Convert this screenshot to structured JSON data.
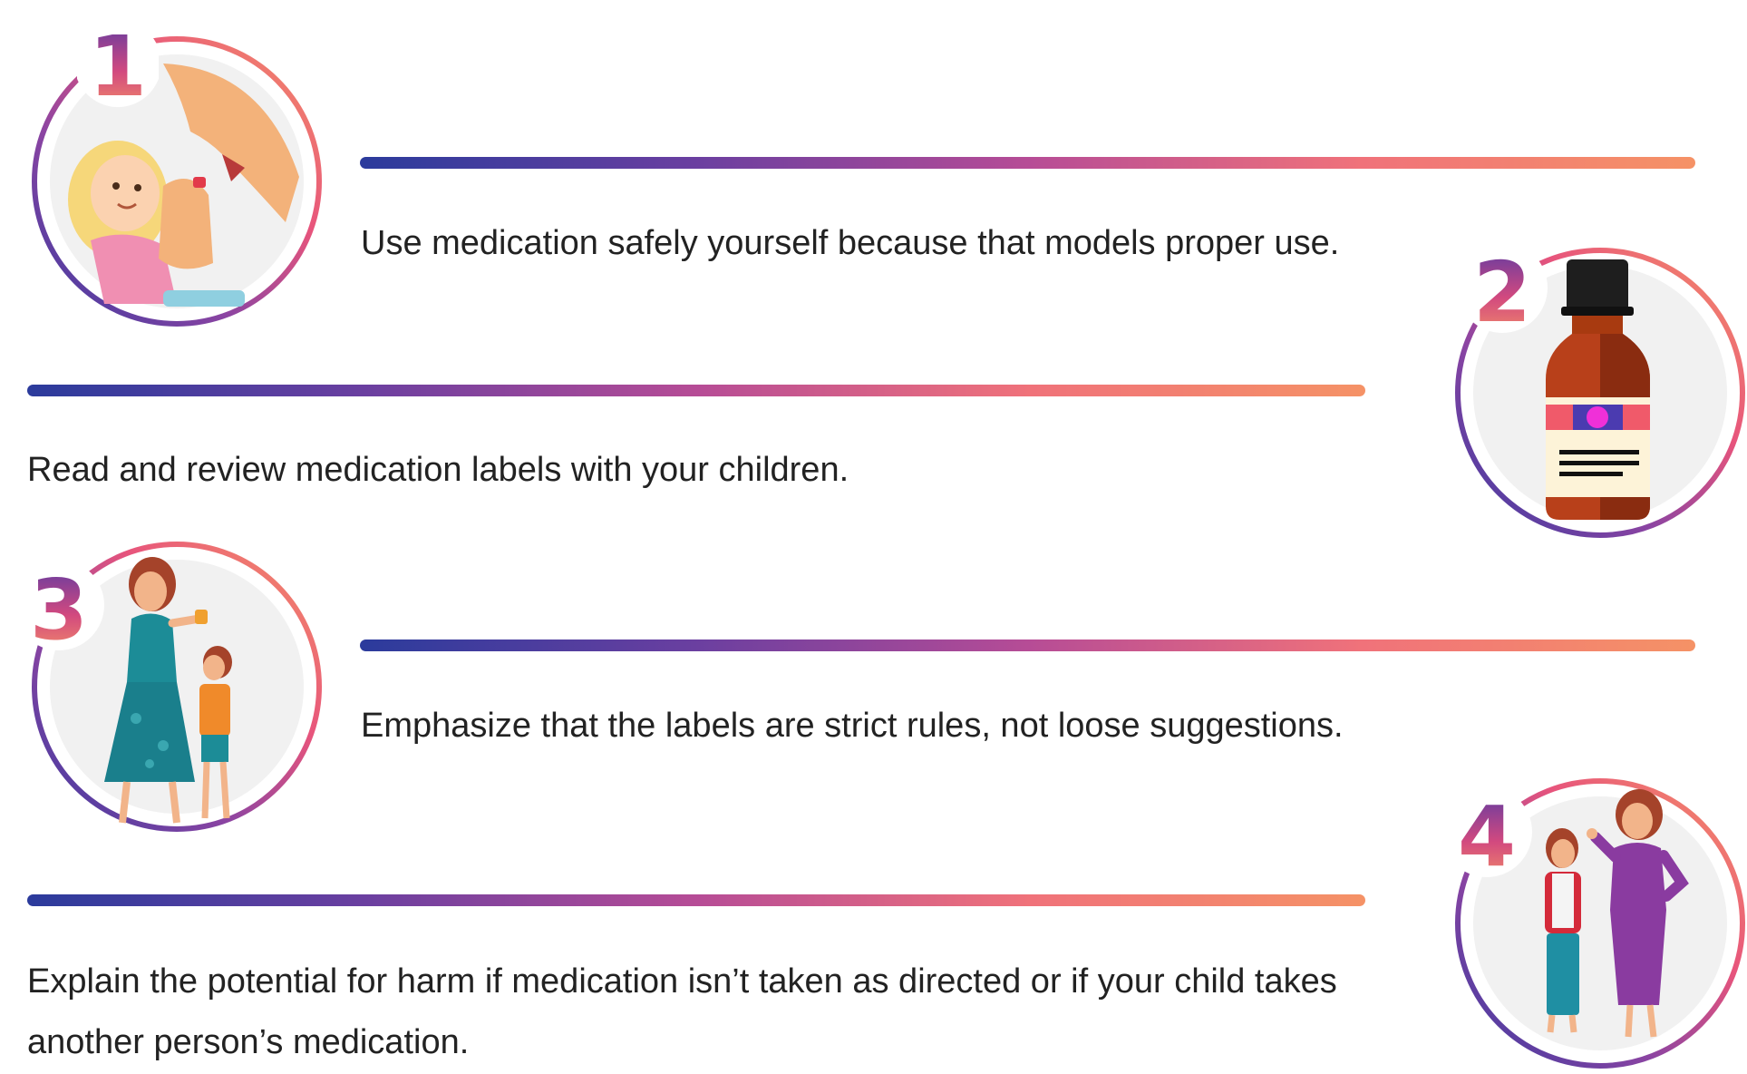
{
  "steps": [
    {
      "number": "1",
      "text": "Use medication safely yourself because that models proper use."
    },
    {
      "number": "2",
      "text": "Read and review medication labels with your children."
    },
    {
      "number": "3",
      "text": "Emphasize that the labels are strict rules, not loose suggestions."
    },
    {
      "number": "4",
      "text": "Explain the potential for harm if medication isn’t taken as directed or if your child takes another person’s medication."
    }
  ],
  "colors": {
    "gradient_start": "#2b3b9c",
    "gradient_mid": "#b64c96",
    "gradient_end": "#f59266"
  }
}
